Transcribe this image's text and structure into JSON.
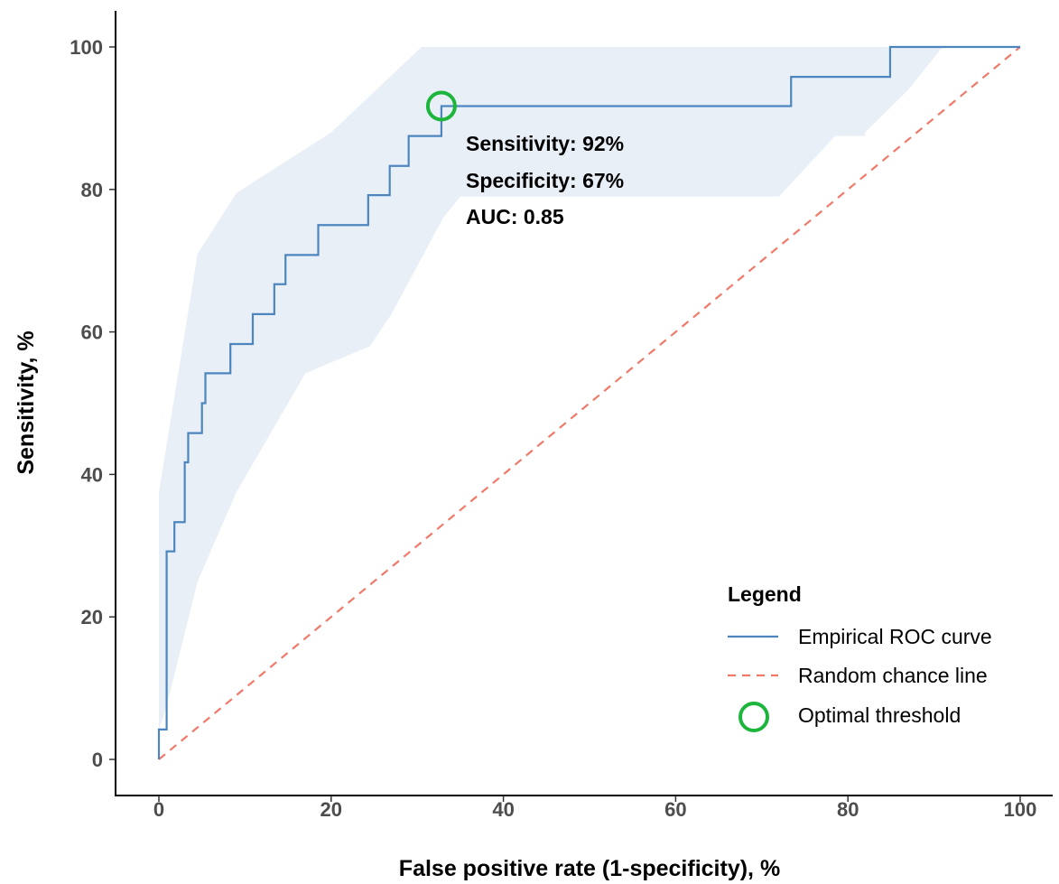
{
  "chart_data": {
    "type": "line",
    "xlabel": "False positive rate (1-specificity), %",
    "ylabel": "Sensitivity, %",
    "xlim": [
      0,
      100
    ],
    "ylim": [
      0,
      100
    ],
    "x_ticks": [
      0,
      20,
      40,
      60,
      80,
      100
    ],
    "y_ticks": [
      0,
      20,
      40,
      60,
      80,
      100
    ],
    "grid": false,
    "colors": {
      "roc": "#4d86bf",
      "ci_band": "#e9eff7",
      "chance": "#f07a6a",
      "optimal": "#1db53c",
      "axis": "#000000",
      "tick_text": "#4d4d4d"
    },
    "series": [
      {
        "name": "Empirical ROC curve",
        "style": "step",
        "points": [
          [
            0,
            0
          ],
          [
            0,
            4.2
          ],
          [
            0.9,
            4.2
          ],
          [
            0.9,
            29.2
          ],
          [
            1.8,
            29.2
          ],
          [
            1.8,
            33.3
          ],
          [
            3.0,
            33.3
          ],
          [
            3.0,
            41.7
          ],
          [
            3.4,
            41.7
          ],
          [
            3.4,
            45.8
          ],
          [
            5.0,
            45.8
          ],
          [
            5.0,
            50.0
          ],
          [
            5.4,
            50.0
          ],
          [
            5.4,
            54.2
          ],
          [
            8.3,
            54.2
          ],
          [
            8.3,
            58.3
          ],
          [
            10.9,
            58.3
          ],
          [
            10.9,
            62.5
          ],
          [
            13.4,
            62.5
          ],
          [
            13.4,
            66.7
          ],
          [
            14.7,
            66.7
          ],
          [
            14.7,
            70.8
          ],
          [
            18.5,
            70.8
          ],
          [
            18.5,
            75.0
          ],
          [
            24.3,
            75.0
          ],
          [
            24.3,
            79.2
          ],
          [
            26.8,
            79.2
          ],
          [
            26.8,
            83.3
          ],
          [
            29.0,
            83.3
          ],
          [
            29.0,
            87.5
          ],
          [
            32.8,
            87.5
          ],
          [
            32.8,
            91.7
          ],
          [
            73.4,
            91.7
          ],
          [
            73.4,
            95.8
          ],
          [
            84.9,
            95.8
          ],
          [
            84.9,
            100
          ],
          [
            100,
            100
          ]
        ]
      },
      {
        "name": "Random chance line",
        "style": "dashed",
        "points": [
          [
            0,
            0
          ],
          [
            100,
            100
          ]
        ]
      }
    ],
    "confidence_band": {
      "upper": [
        [
          0,
          37.5
        ],
        [
          4.5,
          71
        ],
        [
          9,
          79.5
        ],
        [
          20,
          88
        ],
        [
          30.5,
          100
        ],
        [
          91,
          100
        ],
        [
          87,
          94
        ],
        [
          82,
          88
        ]
      ],
      "lower": [
        [
          82,
          87.5
        ],
        [
          78.5,
          87.5
        ],
        [
          72,
          79
        ],
        [
          35,
          79
        ],
        [
          33,
          76
        ],
        [
          27,
          62.5
        ],
        [
          24.5,
          58
        ],
        [
          17,
          54.2
        ],
        [
          9,
          37.5
        ],
        [
          4.5,
          25
        ],
        [
          1,
          8
        ],
        [
          0,
          4
        ]
      ]
    },
    "optimal_threshold": {
      "name": "Optimal threshold",
      "x": 32.8,
      "y": 91.7
    },
    "annotations": [
      "Sensitivity: 92%",
      "Specificity: 67%",
      "AUC: 0.85"
    ],
    "legend": {
      "title": "Legend",
      "placement": "bottom-right",
      "entries": [
        "Empirical ROC curve",
        "Random chance line",
        "Optimal threshold"
      ]
    }
  }
}
